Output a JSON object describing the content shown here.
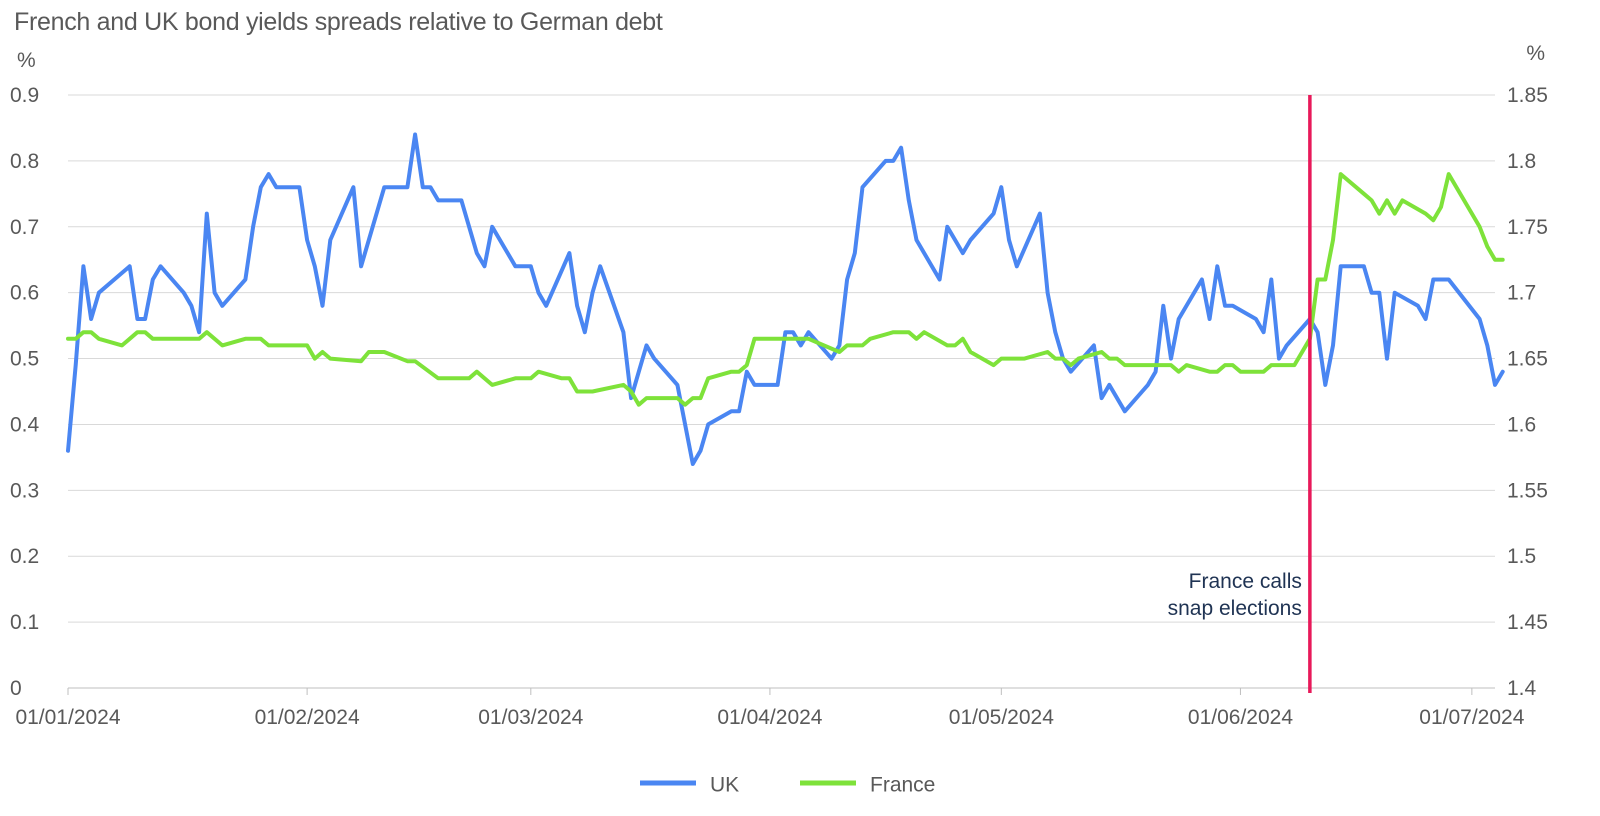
{
  "chart_data": {
    "type": "line",
    "title": "French and UK bond yields spreads relative to German debt",
    "y_left_unit": "%",
    "y_right_unit": "%",
    "y_left": {
      "min": 0,
      "max": 0.9,
      "ticks": [
        "0",
        "0.1",
        "0.2",
        "0.3",
        "0.4",
        "0.5",
        "0.6",
        "0.7",
        "0.8",
        "0.9"
      ]
    },
    "y_right": {
      "min": 1.4,
      "max": 1.85,
      "ticks": [
        "1.4",
        "1.45",
        "1.5",
        "1.55",
        "1.6",
        "1.65",
        "1.7",
        "1.75",
        "1.8",
        "1.85"
      ]
    },
    "x_range": [
      "2024-01-01",
      "2024-07-04"
    ],
    "x_ticks": [
      {
        "date": "2024-01-01",
        "label": "01/01/2024"
      },
      {
        "date": "2024-02-01",
        "label": "01/02/2024"
      },
      {
        "date": "2024-03-01",
        "label": "01/03/2024"
      },
      {
        "date": "2024-04-01",
        "label": "01/04/2024"
      },
      {
        "date": "2024-05-01",
        "label": "01/05/2024"
      },
      {
        "date": "2024-06-01",
        "label": "01/06/2024"
      },
      {
        "date": "2024-07-01",
        "label": "01/07/2024"
      }
    ],
    "grid": true,
    "legend_position": "bottom",
    "annotation": {
      "date": "2024-06-10",
      "lines": [
        "France calls",
        "snap elections"
      ],
      "color": "#e8195a"
    },
    "series": [
      {
        "name": "UK",
        "axis": "left",
        "color": "#4a86f2",
        "points": [
          [
            "2024-01-01",
            0.36
          ],
          [
            "2024-01-02",
            0.49
          ],
          [
            "2024-01-03",
            0.64
          ],
          [
            "2024-01-04",
            0.56
          ],
          [
            "2024-01-05",
            0.6
          ],
          [
            "2024-01-08",
            0.63
          ],
          [
            "2024-01-09",
            0.64
          ],
          [
            "2024-01-10",
            0.56
          ],
          [
            "2024-01-11",
            0.56
          ],
          [
            "2024-01-12",
            0.62
          ],
          [
            "2024-01-13",
            0.64
          ],
          [
            "2024-01-16",
            0.6
          ],
          [
            "2024-01-17",
            0.58
          ],
          [
            "2024-01-18",
            0.54
          ],
          [
            "2024-01-19",
            0.72
          ],
          [
            "2024-01-20",
            0.6
          ],
          [
            "2024-01-21",
            0.58
          ],
          [
            "2024-01-24",
            0.62
          ],
          [
            "2024-01-25",
            0.7
          ],
          [
            "2024-01-26",
            0.76
          ],
          [
            "2024-01-27",
            0.78
          ],
          [
            "2024-01-28",
            0.76
          ],
          [
            "2024-01-31",
            0.76
          ],
          [
            "2024-02-01",
            0.68
          ],
          [
            "2024-02-02",
            0.64
          ],
          [
            "2024-02-03",
            0.58
          ],
          [
            "2024-02-04",
            0.68
          ],
          [
            "2024-02-07",
            0.76
          ],
          [
            "2024-02-08",
            0.64
          ],
          [
            "2024-02-11",
            0.76
          ],
          [
            "2024-02-14",
            0.76
          ],
          [
            "2024-02-15",
            0.84
          ],
          [
            "2024-02-16",
            0.76
          ],
          [
            "2024-02-17",
            0.76
          ],
          [
            "2024-02-18",
            0.74
          ],
          [
            "2024-02-21",
            0.74
          ],
          [
            "2024-02-23",
            0.66
          ],
          [
            "2024-02-24",
            0.64
          ],
          [
            "2024-02-25",
            0.7
          ],
          [
            "2024-02-28",
            0.64
          ],
          [
            "2024-03-01",
            0.64
          ],
          [
            "2024-03-02",
            0.6
          ],
          [
            "2024-03-03",
            0.58
          ],
          [
            "2024-03-06",
            0.66
          ],
          [
            "2024-03-07",
            0.58
          ],
          [
            "2024-03-08",
            0.54
          ],
          [
            "2024-03-09",
            0.6
          ],
          [
            "2024-03-10",
            0.64
          ],
          [
            "2024-03-13",
            0.54
          ],
          [
            "2024-03-14",
            0.44
          ],
          [
            "2024-03-15",
            0.48
          ],
          [
            "2024-03-16",
            0.52
          ],
          [
            "2024-03-17",
            0.5
          ],
          [
            "2024-03-20",
            0.46
          ],
          [
            "2024-03-22",
            0.34
          ],
          [
            "2024-03-23",
            0.36
          ],
          [
            "2024-03-24",
            0.4
          ],
          [
            "2024-03-27",
            0.42
          ],
          [
            "2024-03-28",
            0.42
          ],
          [
            "2024-03-29",
            0.48
          ],
          [
            "2024-03-30",
            0.46
          ],
          [
            "2024-04-01",
            0.46
          ],
          [
            "2024-04-02",
            0.46
          ],
          [
            "2024-04-03",
            0.54
          ],
          [
            "2024-04-04",
            0.54
          ],
          [
            "2024-04-05",
            0.52
          ],
          [
            "2024-04-06",
            0.54
          ],
          [
            "2024-04-09",
            0.5
          ],
          [
            "2024-04-10",
            0.52
          ],
          [
            "2024-04-11",
            0.62
          ],
          [
            "2024-04-12",
            0.66
          ],
          [
            "2024-04-13",
            0.76
          ],
          [
            "2024-04-16",
            0.8
          ],
          [
            "2024-04-17",
            0.8
          ],
          [
            "2024-04-18",
            0.82
          ],
          [
            "2024-04-19",
            0.74
          ],
          [
            "2024-04-20",
            0.68
          ],
          [
            "2024-04-23",
            0.62
          ],
          [
            "2024-04-24",
            0.7
          ],
          [
            "2024-04-25",
            0.68
          ],
          [
            "2024-04-26",
            0.66
          ],
          [
            "2024-04-27",
            0.68
          ],
          [
            "2024-04-30",
            0.72
          ],
          [
            "2024-05-01",
            0.76
          ],
          [
            "2024-05-02",
            0.68
          ],
          [
            "2024-05-03",
            0.64
          ],
          [
            "2024-05-06",
            0.72
          ],
          [
            "2024-05-07",
            0.6
          ],
          [
            "2024-05-08",
            0.54
          ],
          [
            "2024-05-09",
            0.5
          ],
          [
            "2024-05-10",
            0.48
          ],
          [
            "2024-05-13",
            0.52
          ],
          [
            "2024-05-14",
            0.44
          ],
          [
            "2024-05-15",
            0.46
          ],
          [
            "2024-05-17",
            0.42
          ],
          [
            "2024-05-20",
            0.46
          ],
          [
            "2024-05-21",
            0.48
          ],
          [
            "2024-05-22",
            0.58
          ],
          [
            "2024-05-23",
            0.5
          ],
          [
            "2024-05-24",
            0.56
          ],
          [
            "2024-05-27",
            0.62
          ],
          [
            "2024-05-28",
            0.56
          ],
          [
            "2024-05-29",
            0.64
          ],
          [
            "2024-05-30",
            0.58
          ],
          [
            "2024-05-31",
            0.58
          ],
          [
            "2024-06-03",
            0.56
          ],
          [
            "2024-06-04",
            0.54
          ],
          [
            "2024-06-05",
            0.62
          ],
          [
            "2024-06-06",
            0.5
          ],
          [
            "2024-06-07",
            0.52
          ],
          [
            "2024-06-10",
            0.56
          ],
          [
            "2024-06-11",
            0.54
          ],
          [
            "2024-06-12",
            0.46
          ],
          [
            "2024-06-13",
            0.52
          ],
          [
            "2024-06-14",
            0.64
          ],
          [
            "2024-06-17",
            0.64
          ],
          [
            "2024-06-18",
            0.6
          ],
          [
            "2024-06-19",
            0.6
          ],
          [
            "2024-06-20",
            0.5
          ],
          [
            "2024-06-21",
            0.6
          ],
          [
            "2024-06-24",
            0.58
          ],
          [
            "2024-06-25",
            0.56
          ],
          [
            "2024-06-26",
            0.62
          ],
          [
            "2024-06-28",
            0.62
          ],
          [
            "2024-07-02",
            0.56
          ],
          [
            "2024-07-03",
            0.52
          ],
          [
            "2024-07-04",
            0.46
          ],
          [
            "2024-07-05",
            0.48
          ]
        ]
      },
      {
        "name": "France",
        "axis": "right",
        "color": "#7ee23a",
        "points": [
          [
            "2024-01-01",
            1.665
          ],
          [
            "2024-01-02",
            1.665
          ],
          [
            "2024-01-03",
            1.67
          ],
          [
            "2024-01-04",
            1.67
          ],
          [
            "2024-01-05",
            1.665
          ],
          [
            "2024-01-08",
            1.66
          ],
          [
            "2024-01-09",
            1.665
          ],
          [
            "2024-01-10",
            1.67
          ],
          [
            "2024-01-11",
            1.67
          ],
          [
            "2024-01-12",
            1.665
          ],
          [
            "2024-01-16",
            1.665
          ],
          [
            "2024-01-18",
            1.665
          ],
          [
            "2024-01-19",
            1.67
          ],
          [
            "2024-01-21",
            1.66
          ],
          [
            "2024-01-24",
            1.665
          ],
          [
            "2024-01-26",
            1.665
          ],
          [
            "2024-01-27",
            1.66
          ],
          [
            "2024-01-31",
            1.66
          ],
          [
            "2024-02-01",
            1.66
          ],
          [
            "2024-02-02",
            1.65
          ],
          [
            "2024-02-03",
            1.655
          ],
          [
            "2024-02-04",
            1.65
          ],
          [
            "2024-02-08",
            1.648
          ],
          [
            "2024-02-09",
            1.655
          ],
          [
            "2024-02-11",
            1.655
          ],
          [
            "2024-02-14",
            1.648
          ],
          [
            "2024-02-15",
            1.648
          ],
          [
            "2024-02-18",
            1.635
          ],
          [
            "2024-02-22",
            1.635
          ],
          [
            "2024-02-23",
            1.64
          ],
          [
            "2024-02-25",
            1.63
          ],
          [
            "2024-02-28",
            1.635
          ],
          [
            "2024-03-01",
            1.635
          ],
          [
            "2024-03-02",
            1.64
          ],
          [
            "2024-03-05",
            1.635
          ],
          [
            "2024-03-06",
            1.635
          ],
          [
            "2024-03-07",
            1.625
          ],
          [
            "2024-03-09",
            1.625
          ],
          [
            "2024-03-13",
            1.63
          ],
          [
            "2024-03-14",
            1.625
          ],
          [
            "2024-03-15",
            1.615
          ],
          [
            "2024-03-16",
            1.62
          ],
          [
            "2024-03-20",
            1.62
          ],
          [
            "2024-03-21",
            1.615
          ],
          [
            "2024-03-22",
            1.62
          ],
          [
            "2024-03-23",
            1.62
          ],
          [
            "2024-03-24",
            1.635
          ],
          [
            "2024-03-27",
            1.64
          ],
          [
            "2024-03-28",
            1.64
          ],
          [
            "2024-03-29",
            1.645
          ],
          [
            "2024-03-30",
            1.665
          ],
          [
            "2024-04-05",
            1.665
          ],
          [
            "2024-04-06",
            1.665
          ],
          [
            "2024-04-10",
            1.655
          ],
          [
            "2024-04-11",
            1.66
          ],
          [
            "2024-04-13",
            1.66
          ],
          [
            "2024-04-14",
            1.665
          ],
          [
            "2024-04-17",
            1.67
          ],
          [
            "2024-04-19",
            1.67
          ],
          [
            "2024-04-20",
            1.665
          ],
          [
            "2024-04-21",
            1.67
          ],
          [
            "2024-04-24",
            1.66
          ],
          [
            "2024-04-25",
            1.66
          ],
          [
            "2024-04-26",
            1.665
          ],
          [
            "2024-04-27",
            1.655
          ],
          [
            "2024-04-30",
            1.645
          ],
          [
            "2024-05-01",
            1.65
          ],
          [
            "2024-05-04",
            1.65
          ],
          [
            "2024-05-07",
            1.655
          ],
          [
            "2024-05-08",
            1.65
          ],
          [
            "2024-05-09",
            1.65
          ],
          [
            "2024-05-10",
            1.645
          ],
          [
            "2024-05-11",
            1.65
          ],
          [
            "2024-05-14",
            1.655
          ],
          [
            "2024-05-15",
            1.65
          ],
          [
            "2024-05-16",
            1.65
          ],
          [
            "2024-05-17",
            1.645
          ],
          [
            "2024-05-20",
            1.645
          ],
          [
            "2024-05-23",
            1.645
          ],
          [
            "2024-05-24",
            1.64
          ],
          [
            "2024-05-25",
            1.645
          ],
          [
            "2024-05-28",
            1.64
          ],
          [
            "2024-05-29",
            1.64
          ],
          [
            "2024-05-30",
            1.645
          ],
          [
            "2024-05-31",
            1.645
          ],
          [
            "2024-06-01",
            1.64
          ],
          [
            "2024-06-04",
            1.64
          ],
          [
            "2024-06-05",
            1.645
          ],
          [
            "2024-06-08",
            1.645
          ],
          [
            "2024-06-10",
            1.665
          ],
          [
            "2024-06-11",
            1.71
          ],
          [
            "2024-06-12",
            1.71
          ],
          [
            "2024-06-13",
            1.74
          ],
          [
            "2024-06-14",
            1.79
          ],
          [
            "2024-06-17",
            1.775
          ],
          [
            "2024-06-18",
            1.77
          ],
          [
            "2024-06-19",
            1.76
          ],
          [
            "2024-06-20",
            1.77
          ],
          [
            "2024-06-21",
            1.76
          ],
          [
            "2024-06-22",
            1.77
          ],
          [
            "2024-06-25",
            1.76
          ],
          [
            "2024-06-26",
            1.755
          ],
          [
            "2024-06-27",
            1.765
          ],
          [
            "2024-06-28",
            1.79
          ],
          [
            "2024-07-02",
            1.75
          ],
          [
            "2024-07-03",
            1.735
          ],
          [
            "2024-07-04",
            1.725
          ],
          [
            "2024-07-05",
            1.725
          ]
        ]
      }
    ]
  }
}
